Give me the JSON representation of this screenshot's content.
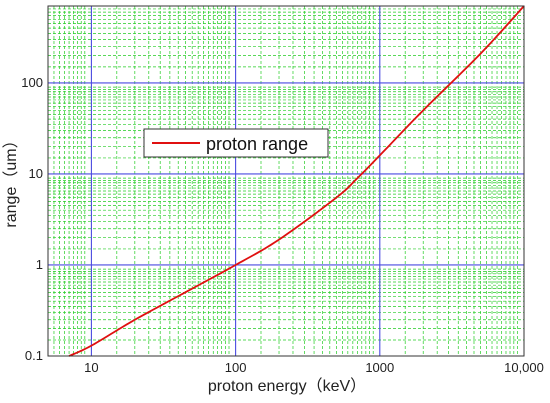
{
  "chart_data": {
    "type": "line",
    "title": "",
    "xlabel": "proton energy（keV）",
    "ylabel": "range（um）",
    "x_scale": "log",
    "y_scale": "log",
    "xlim": [
      5,
      10000
    ],
    "ylim": [
      0.1,
      700
    ],
    "x_ticks": [
      {
        "value": 10,
        "label": "10"
      },
      {
        "value": 100,
        "label": "100"
      },
      {
        "value": 1000,
        "label": "1000"
      },
      {
        "value": 10000,
        "label": "10,000"
      }
    ],
    "y_ticks": [
      {
        "value": 0.1,
        "label": "0.1"
      },
      {
        "value": 1,
        "label": "1"
      },
      {
        "value": 10,
        "label": "10"
      },
      {
        "value": 100,
        "label": "100"
      }
    ],
    "grid": true,
    "legend_position": "upper-left",
    "series": [
      {
        "name": "proton range",
        "color": "#e01010",
        "x": [
          7,
          10,
          20,
          50,
          100,
          200,
          500,
          700,
          1000,
          2000,
          5000,
          10000
        ],
        "y": [
          0.1,
          0.13,
          0.25,
          0.55,
          1.0,
          1.9,
          5.5,
          9.0,
          16,
          50,
          210,
          700
        ]
      }
    ]
  },
  "colors": {
    "major_grid": "#4a4ae0",
    "minor_grid": "#22cc22",
    "axis": "#333333"
  }
}
